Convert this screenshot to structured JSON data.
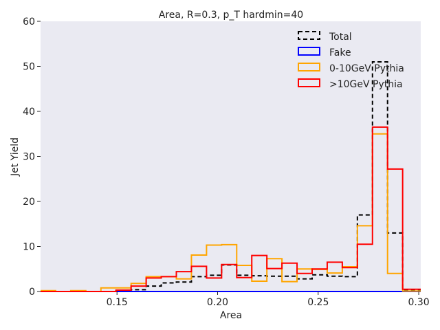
{
  "chart_data": {
    "type": "histogram",
    "title": "Area, R=0.3, p_T hardmin=40",
    "xlabel": "Area",
    "ylabel": "Jet Yield",
    "xlim": [
      0.112,
      0.301
    ],
    "ylim": [
      0,
      60
    ],
    "xticks": [
      0.15,
      0.2,
      0.25,
      0.3
    ],
    "xtick_labels": [
      "0.15",
      "0.20",
      "0.25",
      "0.30"
    ],
    "yticks": [
      0,
      10,
      20,
      30,
      40,
      50,
      60
    ],
    "ytick_labels": [
      "0",
      "10",
      "20",
      "30",
      "40",
      "50",
      "60"
    ],
    "grid": false,
    "background": "#eaeaf2",
    "legend_position": "top-right",
    "bin_edges": [
      0.112,
      0.1195,
      0.127,
      0.1345,
      0.142,
      0.1495,
      0.157,
      0.1645,
      0.172,
      0.1795,
      0.187,
      0.1945,
      0.202,
      0.2095,
      0.217,
      0.2245,
      0.232,
      0.2395,
      0.247,
      0.2545,
      0.262,
      0.2695,
      0.277,
      0.2845,
      0.292,
      0.301
    ],
    "series": [
      {
        "name": "Total",
        "color": "#000000",
        "dashed": true,
        "values": [
          0.0,
          0.0,
          0.0,
          0.0,
          0.0,
          0.2,
          0.4,
          1.2,
          1.9,
          2.1,
          3.3,
          3.6,
          5.9,
          3.6,
          3.5,
          3.4,
          3.4,
          2.8,
          3.7,
          3.4,
          3.3,
          17.0,
          51.0,
          13.0,
          0.4
        ]
      },
      {
        "name": "Fake",
        "color": "#0000ff",
        "dashed": false,
        "values": [
          0,
          0,
          0,
          0,
          0,
          0,
          0,
          0,
          0,
          0,
          0,
          0,
          0,
          0,
          0,
          0,
          0,
          0,
          0,
          0,
          0,
          0,
          0,
          0,
          0
        ]
      },
      {
        "name": "0-10GeV Pythia",
        "color": "#ffa500",
        "dashed": false,
        "values": [
          0.2,
          0.0,
          0.2,
          0.0,
          0.8,
          0.8,
          1.8,
          3.3,
          3.3,
          2.8,
          8.1,
          10.3,
          10.4,
          5.8,
          2.3,
          7.3,
          2.2,
          5.0,
          4.9,
          4.1,
          5.5,
          14.6,
          35.0,
          4.0,
          0.1
        ]
      },
      {
        "name": ">10GeV Pythia",
        "color": "#ff0000",
        "dashed": false,
        "values": [
          0.0,
          0.0,
          0.0,
          0.0,
          0.0,
          0.3,
          1.2,
          3.0,
          3.3,
          4.4,
          5.6,
          3.0,
          6.0,
          3.1,
          8.0,
          5.1,
          6.3,
          4.0,
          5.0,
          6.5,
          5.3,
          10.5,
          36.5,
          27.2,
          0.5
        ]
      }
    ]
  }
}
